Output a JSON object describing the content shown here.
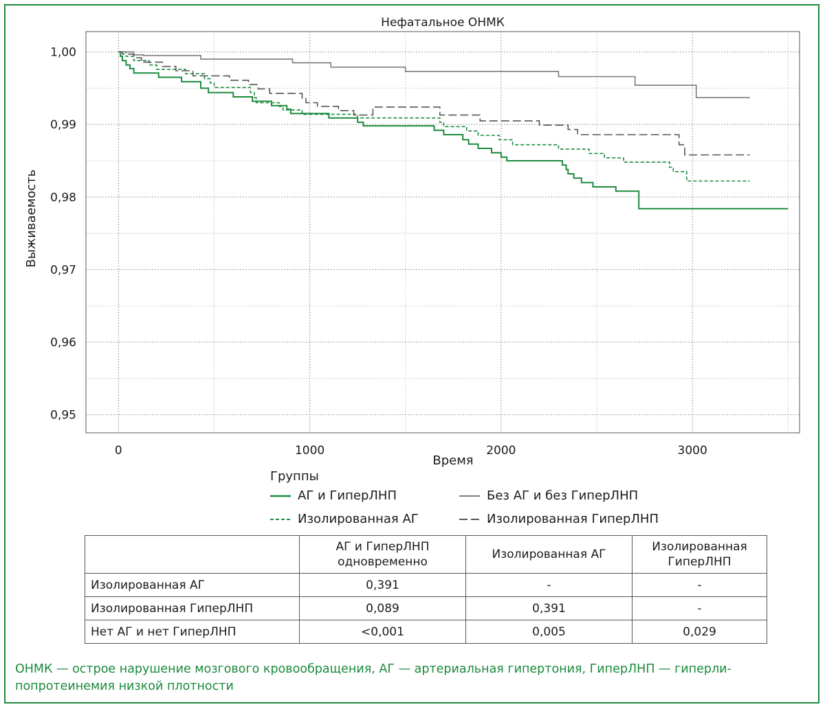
{
  "colors": {
    "frame": "#1a8a3c",
    "ag_hyper": "#1a8a3c",
    "isolated_ag": "#1a8a3c",
    "none": "#7a7a7a",
    "isolated_hyper": "#555555",
    "footnote": "#1a8a3c"
  },
  "chart_data": {
    "type": "line",
    "subtype": "kaplan-meier step",
    "title": "Нефатальное ОНМК",
    "xlabel": "Время",
    "ylabel": "Выживаемость",
    "xlim": [
      -170,
      3560
    ],
    "ylim": [
      0.9475,
      1.0028
    ],
    "x_ticks": [
      0,
      1000,
      2000,
      3000
    ],
    "x_tick_labels": [
      "0",
      "1000",
      "2000",
      "3000"
    ],
    "y_ticks": [
      0.95,
      0.96,
      0.97,
      0.98,
      0.99,
      1.0
    ],
    "y_tick_labels": [
      "0,95",
      "0,96",
      "0,97",
      "0,98",
      "0,99",
      "1,00"
    ],
    "grid": true,
    "legend_title": "Группы",
    "series": [
      {
        "name": "АГ и ГиперЛНП",
        "style": "solid",
        "color": "#1a8a3c",
        "width": 2,
        "points": [
          [
            0,
            1.0
          ],
          [
            10,
            0.9994
          ],
          [
            20,
            0.9988
          ],
          [
            40,
            0.9982
          ],
          [
            60,
            0.9977
          ],
          [
            80,
            0.9971
          ],
          [
            210,
            0.9965
          ],
          [
            330,
            0.9959
          ],
          [
            430,
            0.995
          ],
          [
            470,
            0.9944
          ],
          [
            600,
            0.9938
          ],
          [
            700,
            0.9932
          ],
          [
            800,
            0.9926
          ],
          [
            880,
            0.9921
          ],
          [
            900,
            0.9915
          ],
          [
            1100,
            0.9909
          ],
          [
            1250,
            0.9903
          ],
          [
            1280,
            0.9898
          ],
          [
            1650,
            0.9892
          ],
          [
            1700,
            0.9886
          ],
          [
            1800,
            0.9879
          ],
          [
            1830,
            0.9873
          ],
          [
            1880,
            0.9867
          ],
          [
            1950,
            0.9861
          ],
          [
            2000,
            0.9855
          ],
          [
            2030,
            0.985
          ],
          [
            2320,
            0.9844
          ],
          [
            2340,
            0.9838
          ],
          [
            2350,
            0.9832
          ],
          [
            2380,
            0.9826
          ],
          [
            2420,
            0.982
          ],
          [
            2480,
            0.9814
          ],
          [
            2600,
            0.9808
          ],
          [
            2720,
            0.9784
          ],
          [
            3500,
            0.9784
          ]
        ]
      },
      {
        "name": "Изолированная АГ",
        "style": "dashed",
        "color": "#1a8a3c",
        "width": 1.6,
        "points": [
          [
            0,
            1.0
          ],
          [
            40,
            0.9994
          ],
          [
            80,
            0.9988
          ],
          [
            160,
            0.9982
          ],
          [
            200,
            0.9976
          ],
          [
            350,
            0.997
          ],
          [
            450,
            0.9963
          ],
          [
            480,
            0.9957
          ],
          [
            500,
            0.9951
          ],
          [
            690,
            0.9944
          ],
          [
            710,
            0.9937
          ],
          [
            720,
            0.993
          ],
          [
            840,
            0.9925
          ],
          [
            860,
            0.992
          ],
          [
            960,
            0.9914
          ],
          [
            1250,
            0.9909
          ],
          [
            1680,
            0.9903
          ],
          [
            1700,
            0.9897
          ],
          [
            1820,
            0.9891
          ],
          [
            1880,
            0.9885
          ],
          [
            1990,
            0.9879
          ],
          [
            2060,
            0.9872
          ],
          [
            2300,
            0.9866
          ],
          [
            2460,
            0.986
          ],
          [
            2540,
            0.9854
          ],
          [
            2640,
            0.9848
          ],
          [
            2880,
            0.9841
          ],
          [
            2900,
            0.9835
          ],
          [
            2970,
            0.9822
          ],
          [
            3300,
            0.9822
          ]
        ]
      },
      {
        "name": "Без АГ и без ГиперЛНП",
        "style": "solid",
        "color": "#7a7a7a",
        "width": 1.6,
        "points": [
          [
            0,
            1.0
          ],
          [
            70,
            1.0
          ],
          [
            80,
            0.9996
          ],
          [
            130,
            0.9995
          ],
          [
            430,
            0.999
          ],
          [
            910,
            0.9985
          ],
          [
            1110,
            0.9979
          ],
          [
            1500,
            0.9973
          ],
          [
            2300,
            0.9966
          ],
          [
            2700,
            0.9954
          ],
          [
            3020,
            0.9937
          ],
          [
            3300,
            0.9937
          ]
        ]
      },
      {
        "name": "Изолированная ГиперЛНП",
        "style": "longdash",
        "color": "#555555",
        "width": 1.6,
        "points": [
          [
            0,
            1.0
          ],
          [
            20,
            0.9997
          ],
          [
            80,
            0.9992
          ],
          [
            120,
            0.9986
          ],
          [
            230,
            0.998
          ],
          [
            300,
            0.9974
          ],
          [
            390,
            0.9967
          ],
          [
            580,
            0.9961
          ],
          [
            680,
            0.9955
          ],
          [
            730,
            0.9949
          ],
          [
            790,
            0.9943
          ],
          [
            960,
            0.9936
          ],
          [
            980,
            0.993
          ],
          [
            1040,
            0.9925
          ],
          [
            1150,
            0.9919
          ],
          [
            1230,
            0.9913
          ],
          [
            1330,
            0.9924
          ],
          [
            1680,
            0.9913
          ],
          [
            1890,
            0.9905
          ],
          [
            2200,
            0.9899
          ],
          [
            2350,
            0.9893
          ],
          [
            2400,
            0.9886
          ],
          [
            2930,
            0.9872
          ],
          [
            2960,
            0.9858
          ],
          [
            3300,
            0.9858
          ]
        ]
      }
    ]
  },
  "legend": {
    "title": "Группы",
    "items": [
      {
        "label": "АГ и ГиперЛНП"
      },
      {
        "label": "Без АГ и без ГиперЛНП"
      },
      {
        "label": "Изолированная АГ"
      },
      {
        "label": "Изолированная ГиперЛНП"
      }
    ]
  },
  "table": {
    "headers": [
      "",
      "АГ и ГиперЛНП одновременно",
      "Изолированная АГ",
      "Изолированная ГиперЛНП"
    ],
    "header_lines": [
      [
        ""
      ],
      [
        "АГ и ГиперЛНП",
        "одновременно"
      ],
      [
        "Изолированная АГ"
      ],
      [
        "Изолированная",
        "ГиперЛНП"
      ]
    ],
    "rows": [
      [
        "Изолированная АГ",
        "0,391",
        "-",
        "-"
      ],
      [
        "Изолированная ГиперЛНП",
        "0,089",
        "0,391",
        "-"
      ],
      [
        "Нет АГ и нет ГиперЛНП",
        "<0,001",
        "0,005",
        "0,029"
      ]
    ]
  },
  "footnote": "ОНМК — острое нарушение мозгового кровообращения, АГ — артериальная гипертония, ГиперЛНП — гиперли-попротеинемия низкой плотности",
  "footnote_lines": [
    "ОНМК — острое нарушение мозгового кровообращения, АГ — артериальная гипертония, ГиперЛНП — гиперли-",
    "попротеинемия низкой плотности"
  ]
}
